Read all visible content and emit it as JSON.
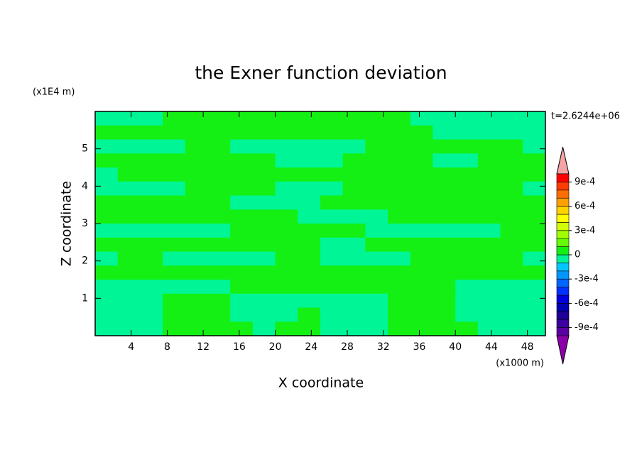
{
  "chart_data": {
    "type": "contour",
    "title": "the Exner function deviation",
    "xlabel": "X coordinate",
    "ylabel": "Z coordinate",
    "xunit": "(x1000 m)",
    "yunit": "(x1E4 m)",
    "annotation": "t=2.6244e+06",
    "xlim": [
      0,
      50
    ],
    "ylim": [
      0,
      6
    ],
    "xticks": [
      4,
      8,
      12,
      16,
      20,
      24,
      28,
      32,
      36,
      40,
      44,
      48
    ],
    "yticks": [
      1,
      2,
      3,
      4,
      5
    ],
    "x": [
      1.25,
      3.75,
      6.25,
      8.75,
      11.25,
      13.75,
      16.25,
      18.75,
      21.25,
      23.75,
      26.25,
      28.75,
      31.25,
      33.75,
      36.25,
      38.75,
      41.25,
      43.75,
      46.25,
      48.75
    ],
    "y": [
      5.8125,
      5.4375,
      5.0625,
      4.6875,
      4.3125,
      3.9375,
      3.5625,
      3.1875,
      2.8125,
      2.4375,
      2.0625,
      1.6875,
      1.3125,
      0.9375,
      0.5625,
      0.1875
    ],
    "z": [
      [
        -5e-05,
        -5e-05,
        -5e-05,
        5e-05,
        5e-05,
        5e-05,
        5e-05,
        5e-05,
        5e-05,
        5e-05,
        5e-05,
        5e-05,
        5e-05,
        5e-05,
        -5e-05,
        -5e-05,
        -5e-05,
        -5e-05,
        -5e-05,
        -5e-05
      ],
      [
        5e-05,
        5e-05,
        5e-05,
        5e-05,
        5e-05,
        5e-05,
        5e-05,
        5e-05,
        5e-05,
        5e-05,
        5e-05,
        5e-05,
        5e-05,
        5e-05,
        5e-05,
        -5e-05,
        -5e-05,
        -5e-05,
        -5e-05,
        -5e-05
      ],
      [
        -5e-05,
        -5e-05,
        -5e-05,
        -5e-05,
        5e-05,
        5e-05,
        -5e-05,
        -5e-05,
        -5e-05,
        -5e-05,
        -5e-05,
        -5e-05,
        5e-05,
        5e-05,
        5e-05,
        5e-05,
        5e-05,
        5e-05,
        5e-05,
        -5e-05
      ],
      [
        5e-05,
        5e-05,
        5e-05,
        5e-05,
        5e-05,
        5e-05,
        5e-05,
        5e-05,
        -5e-05,
        -5e-05,
        -5e-05,
        5e-05,
        5e-05,
        5e-05,
        5e-05,
        -5e-05,
        -5e-05,
        5e-05,
        5e-05,
        5e-05
      ],
      [
        -5e-05,
        5e-05,
        5e-05,
        5e-05,
        5e-05,
        5e-05,
        5e-05,
        5e-05,
        5e-05,
        5e-05,
        5e-05,
        5e-05,
        5e-05,
        5e-05,
        5e-05,
        5e-05,
        5e-05,
        5e-05,
        5e-05,
        5e-05
      ],
      [
        -5e-05,
        -5e-05,
        -5e-05,
        -5e-05,
        5e-05,
        5e-05,
        5e-05,
        5e-05,
        -5e-05,
        -5e-05,
        -5e-05,
        5e-05,
        5e-05,
        5e-05,
        5e-05,
        5e-05,
        5e-05,
        5e-05,
        5e-05,
        -5e-05
      ],
      [
        5e-05,
        5e-05,
        5e-05,
        5e-05,
        5e-05,
        5e-05,
        -5e-05,
        -5e-05,
        -5e-05,
        -5e-05,
        5e-05,
        5e-05,
        5e-05,
        5e-05,
        5e-05,
        5e-05,
        5e-05,
        5e-05,
        5e-05,
        5e-05
      ],
      [
        5e-05,
        5e-05,
        5e-05,
        5e-05,
        5e-05,
        5e-05,
        5e-05,
        5e-05,
        5e-05,
        -5e-05,
        -5e-05,
        -5e-05,
        -5e-05,
        5e-05,
        5e-05,
        5e-05,
        5e-05,
        5e-05,
        5e-05,
        5e-05
      ],
      [
        -5e-05,
        -5e-05,
        -5e-05,
        -5e-05,
        -5e-05,
        -5e-05,
        5e-05,
        5e-05,
        5e-05,
        5e-05,
        5e-05,
        5e-05,
        -5e-05,
        -5e-05,
        -5e-05,
        -5e-05,
        -5e-05,
        -5e-05,
        5e-05,
        5e-05
      ],
      [
        5e-05,
        5e-05,
        5e-05,
        5e-05,
        5e-05,
        5e-05,
        5e-05,
        5e-05,
        5e-05,
        5e-05,
        -5e-05,
        -5e-05,
        5e-05,
        5e-05,
        5e-05,
        5e-05,
        5e-05,
        5e-05,
        5e-05,
        5e-05
      ],
      [
        -5e-05,
        5e-05,
        5e-05,
        -5e-05,
        -5e-05,
        -5e-05,
        -5e-05,
        -5e-05,
        5e-05,
        5e-05,
        -5e-05,
        -5e-05,
        -5e-05,
        -5e-05,
        5e-05,
        5e-05,
        5e-05,
        5e-05,
        5e-05,
        -5e-05
      ],
      [
        5e-05,
        5e-05,
        5e-05,
        5e-05,
        5e-05,
        5e-05,
        5e-05,
        5e-05,
        5e-05,
        5e-05,
        5e-05,
        5e-05,
        5e-05,
        5e-05,
        5e-05,
        5e-05,
        5e-05,
        5e-05,
        5e-05,
        5e-05
      ],
      [
        -5e-05,
        -5e-05,
        -5e-05,
        -5e-05,
        -5e-05,
        -5e-05,
        5e-05,
        5e-05,
        5e-05,
        5e-05,
        5e-05,
        5e-05,
        5e-05,
        5e-05,
        5e-05,
        5e-05,
        -5e-05,
        -5e-05,
        -5e-05,
        -5e-05
      ],
      [
        -5e-05,
        -5e-05,
        -5e-05,
        5e-05,
        5e-05,
        5e-05,
        -5e-05,
        -5e-05,
        -5e-05,
        -5e-05,
        -5e-05,
        -5e-05,
        -5e-05,
        5e-05,
        5e-05,
        5e-05,
        -5e-05,
        -5e-05,
        -5e-05,
        -5e-05
      ],
      [
        -5e-05,
        -5e-05,
        -5e-05,
        5e-05,
        5e-05,
        5e-05,
        -5e-05,
        -5e-05,
        -5e-05,
        5e-05,
        -5e-05,
        -5e-05,
        -5e-05,
        5e-05,
        5e-05,
        5e-05,
        -5e-05,
        -5e-05,
        -5e-05,
        -5e-05
      ],
      [
        -5e-05,
        -5e-05,
        -5e-05,
        5e-05,
        5e-05,
        5e-05,
        5e-05,
        -5e-05,
        5e-05,
        5e-05,
        -5e-05,
        -5e-05,
        -5e-05,
        5e-05,
        5e-05,
        5e-05,
        5e-05,
        -5e-05,
        -5e-05,
        -5e-05
      ]
    ],
    "colorbar": {
      "levels": [
        -0.001,
        -0.0009,
        -0.0008,
        -0.0007,
        -0.0006,
        -0.0005,
        -0.0004,
        -0.0003,
        -0.0002,
        -0.0001,
        0,
        0.0001,
        0.0002,
        0.0003,
        0.0004,
        0.0005,
        0.0006,
        0.0007,
        0.0008,
        0.0009,
        0.001
      ],
      "colors": [
        "#5a00a0",
        "#3c00a0",
        "#1e0096",
        "#0000b4",
        "#0000dc",
        "#0032ff",
        "#0064ff",
        "#0096ff",
        "#00c8ff",
        "#00f596",
        "#14f014",
        "#64ff00",
        "#a0ff00",
        "#d2ff00",
        "#ffff00",
        "#ffd200",
        "#ffa000",
        "#ff6e00",
        "#ff3c00",
        "#ff0000"
      ],
      "extend_colors": [
        "#8c00aa",
        "#f4a4a4"
      ],
      "ticks": [
        {
          "value": 0.0009,
          "label": "9e-4"
        },
        {
          "value": 0.0006,
          "label": "6e-4"
        },
        {
          "value": 0.0003,
          "label": "3e-4"
        },
        0,
        {
          "value": -0.0003,
          "label": "-3e-4"
        },
        {
          "value": -0.0006,
          "label": "-6e-4"
        },
        {
          "value": -0.0009,
          "label": "-9e-4"
        }
      ]
    }
  }
}
